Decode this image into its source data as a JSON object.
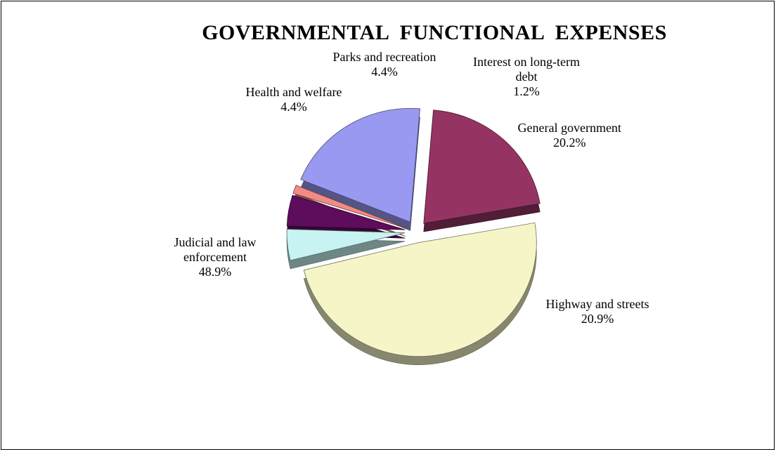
{
  "chart_data": {
    "type": "pie",
    "title": "GOVERNMENTAL  FUNCTIONAL  EXPENSES",
    "slices": [
      {
        "label": [
          "General government"
        ],
        "pct_text": "20.2%",
        "value": 20.2,
        "color": "#9999f2"
      },
      {
        "label": [
          "Highway and streets"
        ],
        "pct_text": "20.9%",
        "value": 20.9,
        "color": "#953462"
      },
      {
        "label": [
          "Judicial and law",
          "enforcement"
        ],
        "pct_text": "48.9%",
        "value": 48.9,
        "color": "#f5f5c7"
      },
      {
        "label": [
          "Health and welfare"
        ],
        "pct_text": "4.4%",
        "value": 4.4,
        "color": "#c8f3f3"
      },
      {
        "label": [
          "Parks and recreation"
        ],
        "pct_text": "4.4%",
        "value": 4.4,
        "color": "#5e0c5c"
      },
      {
        "label": [
          "Interest on long-term",
          "debt"
        ],
        "pct_text": "1.2%",
        "value": 1.2,
        "color": "#f28a86"
      }
    ]
  }
}
